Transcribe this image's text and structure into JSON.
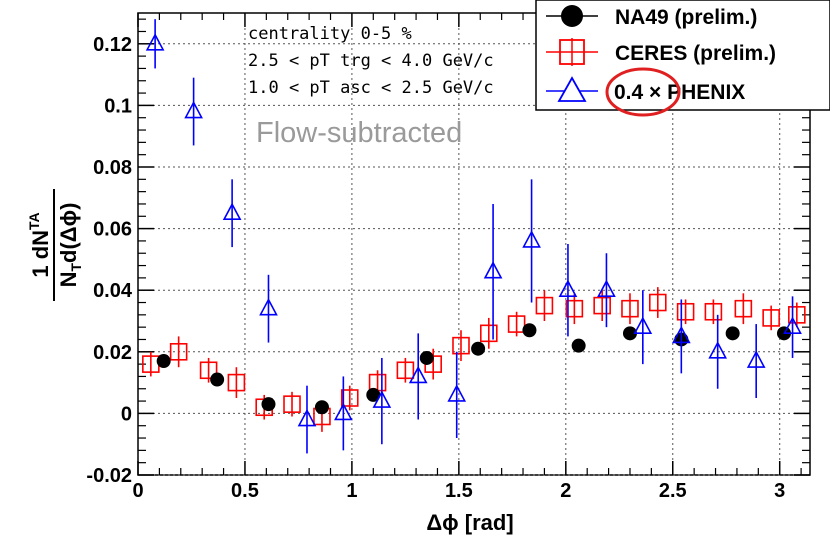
{
  "chart_data": {
    "type": "scatter",
    "xlabel": "Δϕ [rad]",
    "ylabel": "1/N_T dN^TA/d(Δϕ)",
    "xlim": [
      0,
      3.14159
    ],
    "ylim": [
      -0.02,
      0.13
    ],
    "grid": true,
    "x_ticks": [
      "0",
      "0.5",
      "1",
      "1.5",
      "2",
      "2.5",
      "3"
    ],
    "y_ticks": [
      "-0.02",
      "0",
      "0.02",
      "0.04",
      "0.06",
      "0.08",
      "0.1",
      "0.12"
    ],
    "annotations": [
      "centrality 0-5 %",
      "2.5 < pT trg < 4.0 GeV/c",
      "1.0 < pT asc < 2.5 GeV/c",
      "Flow-subtracted"
    ],
    "legend_position": "top-right",
    "series": [
      {
        "name": "NA49 (prelim.)",
        "marker": "filled-circle",
        "color": "#000000",
        "x": [
          0.12,
          0.37,
          0.61,
          0.86,
          1.1,
          1.35,
          1.59,
          1.83,
          2.06,
          2.3,
          2.54,
          2.78,
          3.02
        ],
        "y": [
          0.017,
          0.011,
          0.003,
          0.002,
          0.006,
          0.018,
          0.021,
          0.027,
          0.022,
          0.026,
          0.024,
          0.026,
          0.026
        ],
        "err": [
          0.002,
          0.002,
          0.002,
          0.002,
          0.002,
          0.002,
          0.002,
          0.002,
          0.002,
          0.002,
          0.002,
          0.002,
          0.002
        ]
      },
      {
        "name": "CERES (prelim.)",
        "marker": "open-square",
        "color": "#ff0000",
        "x": [
          0.06,
          0.19,
          0.33,
          0.46,
          0.59,
          0.72,
          0.86,
          0.99,
          1.12,
          1.25,
          1.38,
          1.51,
          1.64,
          1.77,
          1.9,
          2.04,
          2.17,
          2.3,
          2.43,
          2.56,
          2.69,
          2.83,
          2.96,
          3.08
        ],
        "y": [
          0.016,
          0.02,
          0.014,
          0.01,
          0.002,
          0.003,
          -0.001,
          0.005,
          0.01,
          0.014,
          0.016,
          0.022,
          0.026,
          0.029,
          0.035,
          0.034,
          0.035,
          0.034,
          0.036,
          0.033,
          0.033,
          0.034,
          0.031,
          0.032
        ],
        "err": [
          0.004,
          0.005,
          0.004,
          0.005,
          0.004,
          0.004,
          0.005,
          0.004,
          0.004,
          0.004,
          0.005,
          0.005,
          0.005,
          0.004,
          0.005,
          0.005,
          0.005,
          0.005,
          0.005,
          0.004,
          0.004,
          0.005,
          0.004,
          0.004
        ]
      },
      {
        "name": "0.4 × PHENIX",
        "marker": "open-triangle",
        "color": "#0000ff",
        "x": [
          0.08,
          0.26,
          0.44,
          0.61,
          0.79,
          0.96,
          1.14,
          1.31,
          1.49,
          1.66,
          1.84,
          2.01,
          2.19,
          2.36,
          2.54,
          2.71,
          2.89,
          3.06
        ],
        "y": [
          0.12,
          0.098,
          0.065,
          0.034,
          -0.002,
          0,
          0.004,
          0.012,
          0.006,
          0.046,
          0.056,
          0.04,
          0.04,
          0.028,
          0.025,
          0.02,
          0.017,
          0.028
        ],
        "err": [
          0.008,
          0.011,
          0.011,
          0.011,
          0.011,
          0.012,
          0.014,
          0.014,
          0.014,
          0.022,
          0.02,
          0.015,
          0.012,
          0.012,
          0.012,
          0.012,
          0.012,
          0.01
        ]
      }
    ]
  }
}
